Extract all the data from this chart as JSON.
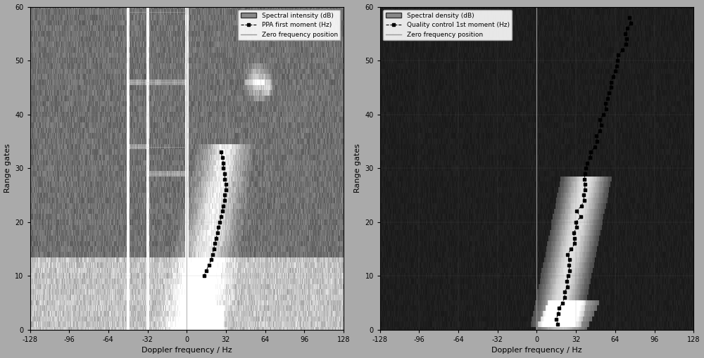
{
  "fig_width": 10.0,
  "fig_height": 5.09,
  "dpi": 100,
  "bg_color": "#aaaaaa",
  "plot_bg_color": "#777777",
  "xlim": [
    -128,
    128
  ],
  "ylim": [
    0,
    60
  ],
  "xticks": [
    -128,
    -96,
    -64,
    -32,
    0,
    32,
    64,
    96,
    128
  ],
  "yticks": [
    0,
    10,
    20,
    30,
    40,
    50,
    60
  ],
  "xlabel": "Doppler frequency / Hz",
  "ylabel": "Range gates",
  "subplot1_legend": [
    "Spectral intensity (dB)",
    "PPA first moment (Hz)",
    "Zero frequency position"
  ],
  "subplot2_legend": [
    "Spectral density (dB)",
    "Quality control 1st moment (Hz)",
    "Zero frequency position"
  ],
  "noise_seed": 1234
}
